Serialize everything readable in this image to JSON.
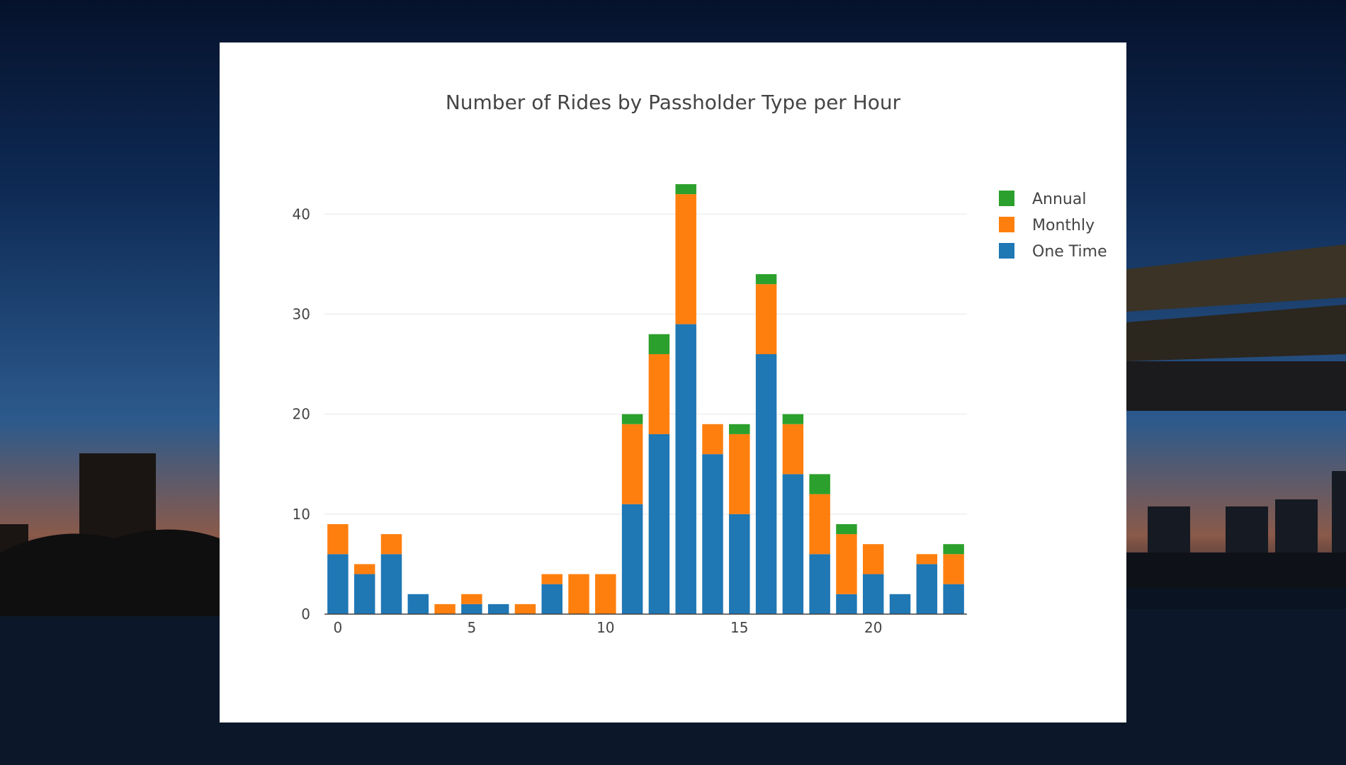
{
  "chart_data": {
    "type": "bar",
    "stacked": true,
    "title": "Number of Rides by Passholder Type per Hour",
    "xlabel": "",
    "ylabel": "",
    "x": [
      0,
      1,
      2,
      3,
      4,
      5,
      6,
      7,
      8,
      9,
      10,
      11,
      12,
      13,
      14,
      15,
      16,
      17,
      18,
      19,
      20,
      21,
      22,
      23
    ],
    "xticks": [
      "0",
      "5",
      "10",
      "15",
      "20"
    ],
    "yticks": [
      "0",
      "10",
      "20",
      "30",
      "40"
    ],
    "xlim": [
      -0.5,
      23.5
    ],
    "ylim": [
      0,
      43
    ],
    "grid": true,
    "legend_position": "right",
    "series": [
      {
        "name": "One Time",
        "color": "#1f77b4",
        "values": [
          6,
          4,
          6,
          2,
          0,
          1,
          1,
          0,
          3,
          0,
          0,
          11,
          18,
          29,
          16,
          10,
          26,
          14,
          6,
          2,
          4,
          2,
          5,
          3
        ]
      },
      {
        "name": "Monthly",
        "color": "#ff7f0e",
        "values": [
          3,
          1,
          2,
          0,
          1,
          1,
          0,
          1,
          1,
          4,
          4,
          8,
          8,
          13,
          3,
          8,
          7,
          5,
          6,
          6,
          3,
          0,
          1,
          3
        ]
      },
      {
        "name": "Annual",
        "color": "#2ca02c",
        "values": [
          0,
          0,
          0,
          0,
          0,
          0,
          0,
          0,
          0,
          0,
          0,
          1,
          2,
          1,
          0,
          1,
          1,
          1,
          2,
          1,
          0,
          0,
          0,
          1
        ]
      }
    ],
    "legend_order": [
      "Annual",
      "Monthly",
      "One Time"
    ]
  }
}
